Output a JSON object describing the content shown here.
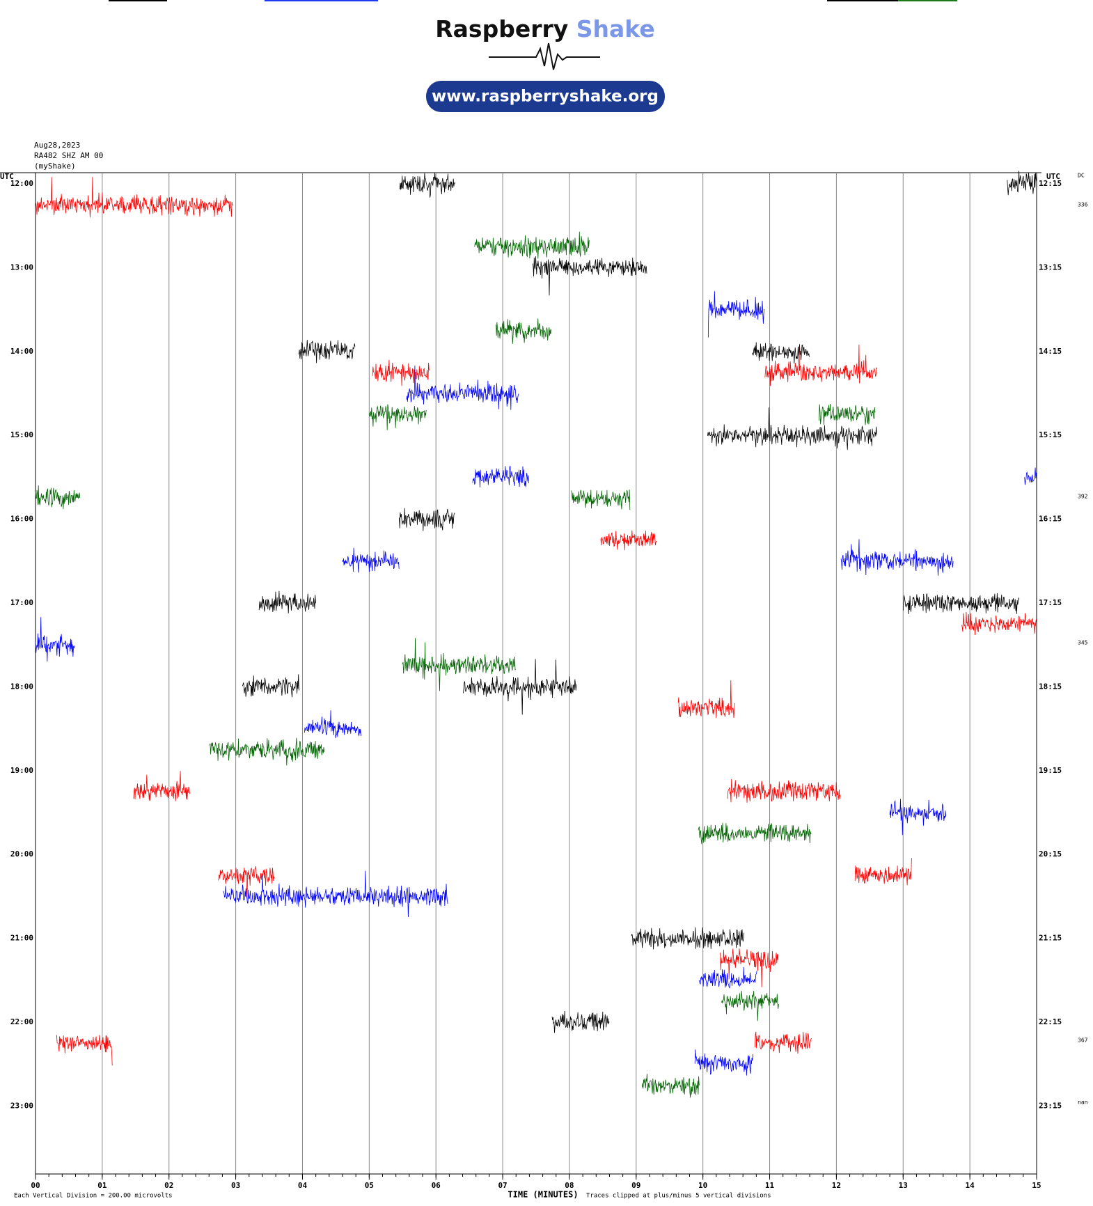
{
  "chart_data": {
    "type": "helicorder",
    "logo": {
      "word1": "Raspberry",
      "word2": "Shake",
      "url": "www.raspberryshake.org"
    },
    "date": "Aug28,2023",
    "station": "RA482 SHZ AM 00",
    "source": "(myShake)",
    "left_timezone": "UTC",
    "right_timezone": "UTC",
    "left_labels": [
      "12:00",
      "13:00",
      "14:00",
      "15:00",
      "16:00",
      "17:00",
      "18:00",
      "19:00",
      "20:00",
      "21:00",
      "22:00",
      "23:00"
    ],
    "right_labels": [
      "12:15",
      "13:15",
      "14:15",
      "15:15",
      "16:15",
      "17:15",
      "18:15",
      "19:15",
      "20:15",
      "21:15",
      "22:15",
      "23:15"
    ],
    "side_notes": [
      "DC",
      "336",
      "392",
      "345",
      "367",
      "nan"
    ],
    "x_label": "TIME (MINUTES)",
    "scale_note": "Each Vertical Division =  200.00 microvolts",
    "clip_note": "Traces clipped at plus/minus 5 vertical divisions",
    "xlim": [
      0,
      15
    ],
    "xticks": [
      {
        "value": 0,
        "label": "00"
      },
      {
        "value": 1,
        "label": "01"
      },
      {
        "value": 2,
        "label": "02"
      },
      {
        "value": 3,
        "label": "03"
      },
      {
        "value": 4,
        "label": "04"
      },
      {
        "value": 5,
        "label": "05"
      },
      {
        "value": 6,
        "label": "06"
      },
      {
        "value": 7,
        "label": "07"
      },
      {
        "value": 8,
        "label": "08"
      },
      {
        "value": 9,
        "label": "09"
      },
      10,
      11,
      12,
      13,
      14,
      15
    ],
    "grid": true,
    "segments": [
      {
        "row": 0,
        "start": 5.45,
        "end": 6.29,
        "color": "#000000"
      },
      {
        "row": 0,
        "start": 14.56,
        "end": 15,
        "color": "#000000"
      },
      {
        "row": 1,
        "start": 0,
        "end": 2.96,
        "color": "#ff0000"
      },
      {
        "row": 3,
        "start": 6.58,
        "end": 8.3,
        "color": "#006400"
      },
      {
        "row": 4,
        "start": 7.45,
        "end": 9.16,
        "color": "#000000"
      },
      {
        "row": 6,
        "start": 10.08,
        "end": 10.92,
        "color": "#0000ff"
      },
      {
        "row": 7,
        "start": 6.9,
        "end": 7.73,
        "color": "#006400"
      },
      {
        "row": 8,
        "start": 3.94,
        "end": 4.79,
        "color": "#000000"
      },
      {
        "row": 8,
        "start": 10.74,
        "end": 11.6,
        "color": "#000000"
      },
      {
        "row": 9,
        "start": 5.05,
        "end": 5.9,
        "color": "#ff0000"
      },
      {
        "row": 9,
        "start": 10.93,
        "end": 12.61,
        "color": "#ff0000"
      },
      {
        "row": 10,
        "start": 5.56,
        "end": 7.24,
        "color": "#0000ff"
      },
      {
        "row": 11,
        "start": 5.0,
        "end": 5.86,
        "color": "#006400"
      },
      {
        "row": 11,
        "start": 11.74,
        "end": 12.58,
        "color": "#006400"
      },
      {
        "row": 12,
        "start": 10.07,
        "end": 12.61,
        "color": "#000000"
      },
      {
        "row": 14,
        "start": 6.55,
        "end": 7.39,
        "color": "#0000ff"
      },
      {
        "row": 14,
        "start": 14.82,
        "end": 15,
        "color": "#0000ff"
      },
      {
        "row": 15,
        "start": 0,
        "end": 0.67,
        "color": "#006400"
      },
      {
        "row": 15,
        "start": 8.03,
        "end": 8.91,
        "color": "#006400"
      },
      {
        "row": 16,
        "start": 5.45,
        "end": 6.28,
        "color": "#000000"
      },
      {
        "row": 17,
        "start": 8.47,
        "end": 9.31,
        "color": "#ff0000"
      },
      {
        "row": 18,
        "start": 4.6,
        "end": 5.45,
        "color": "#0000ff"
      },
      {
        "row": 18,
        "start": 12.07,
        "end": 13.75,
        "color": "#0000ff"
      },
      {
        "row": 20,
        "start": 3.35,
        "end": 4.2,
        "color": "#000000"
      },
      {
        "row": 20,
        "start": 13.0,
        "end": 14.74,
        "color": "#000000"
      },
      {
        "row": 21,
        "start": 13.88,
        "end": 15,
        "color": "#ff0000"
      },
      {
        "row": 22,
        "start": 0,
        "end": 0.59,
        "color": "#0000ff"
      },
      {
        "row": 23,
        "start": 5.5,
        "end": 7.2,
        "color": "#006400"
      },
      {
        "row": 24,
        "start": 3.1,
        "end": 3.95,
        "color": "#000000"
      },
      {
        "row": 24,
        "start": 6.41,
        "end": 8.11,
        "color": "#000000"
      },
      {
        "row": 25,
        "start": 9.63,
        "end": 10.48,
        "color": "#ff0000"
      },
      {
        "row": 26,
        "start": 4.03,
        "end": 4.88,
        "color": "#0000ff"
      },
      {
        "row": 27,
        "start": 2.61,
        "end": 4.33,
        "color": "#006400"
      },
      {
        "row": 29,
        "start": 1.47,
        "end": 2.31,
        "color": "#ff0000"
      },
      {
        "row": 29,
        "start": 10.37,
        "end": 12.06,
        "color": "#ff0000"
      },
      {
        "row": 30,
        "start": 12.8,
        "end": 13.64,
        "color": "#0000ff"
      },
      {
        "row": 31,
        "start": 9.93,
        "end": 11.63,
        "color": "#006400"
      },
      {
        "row": 33,
        "start": 2.74,
        "end": 3.58,
        "color": "#ff0000"
      },
      {
        "row": 33,
        "start": 12.28,
        "end": 13.13,
        "color": "#ff0000"
      },
      {
        "row": 34,
        "start": 2.81,
        "end": 6.18,
        "color": "#0000ff"
      },
      {
        "row": 36,
        "start": 8.93,
        "end": 10.62,
        "color": "#000000"
      },
      {
        "row": 37,
        "start": 10.26,
        "end": 11.13,
        "color": "#ff0000"
      },
      {
        "row": 38,
        "start": 9.94,
        "end": 10.81,
        "color": "#0000ff"
      },
      {
        "row": 39,
        "start": 10.28,
        "end": 11.14,
        "color": "#006400"
      },
      {
        "row": 40,
        "start": 7.74,
        "end": 8.6,
        "color": "#000000"
      },
      {
        "row": 41,
        "start": 0.31,
        "end": 1.15,
        "color": "#ff0000"
      },
      {
        "row": 41,
        "start": 10.78,
        "end": 11.63,
        "color": "#ff0000"
      },
      {
        "row": 42,
        "start": 9.88,
        "end": 10.75,
        "color": "#0000ff"
      },
      {
        "row": 43,
        "start": 9.09,
        "end": 9.95,
        "color": "#006400"
      }
    ]
  }
}
